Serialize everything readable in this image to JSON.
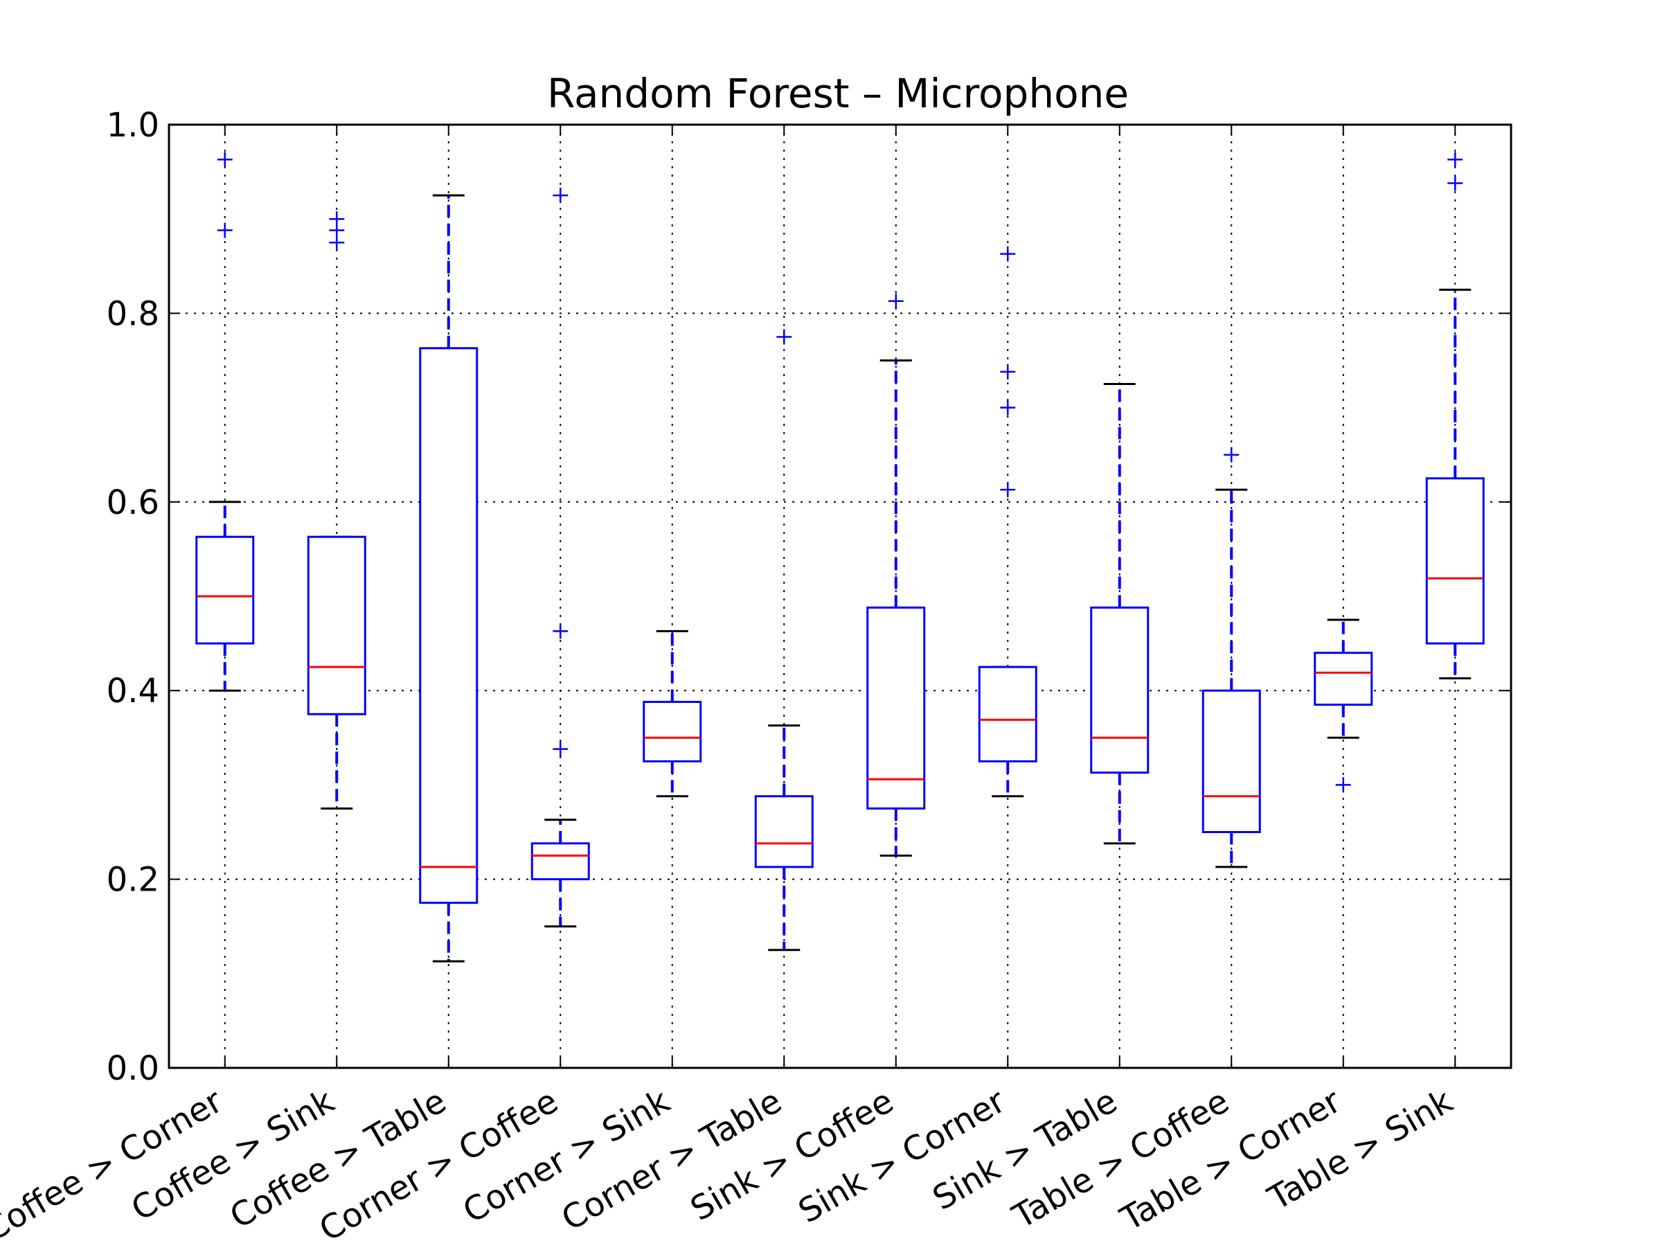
{
  "chart_data": {
    "type": "box",
    "title": "Random Forest – Microphone",
    "xlabel": "",
    "ylabel": "",
    "ylim": [
      0.0,
      1.0
    ],
    "yticks": [
      "0.0",
      "0.2",
      "0.4",
      "0.6",
      "0.8",
      "1.0"
    ],
    "grid": true,
    "categories": [
      "Coffee > Corner",
      "Coffee > Sink",
      "Coffee > Table",
      "Corner > Coffee",
      "Corner > Sink",
      "Corner > Table",
      "Sink > Coffee",
      "Sink > Corner",
      "Sink > Table",
      "Table > Coffee",
      "Table > Corner",
      "Table > Sink"
    ],
    "boxes": [
      {
        "whisker_low": 0.4,
        "q1": 0.45,
        "median": 0.5,
        "q3": 0.563,
        "whisker_high": 0.6,
        "outliers": [
          0.963,
          0.888
        ]
      },
      {
        "whisker_low": 0.275,
        "q1": 0.375,
        "median": 0.425,
        "q3": 0.563,
        "whisker_high": 0.563,
        "outliers": [
          0.9,
          0.888,
          0.875
        ]
      },
      {
        "whisker_low": 0.113,
        "q1": 0.175,
        "median": 0.213,
        "q3": 0.763,
        "whisker_high": 0.925,
        "outliers": []
      },
      {
        "whisker_low": 0.15,
        "q1": 0.2,
        "median": 0.225,
        "q3": 0.238,
        "whisker_high": 0.263,
        "outliers": [
          0.925,
          0.463,
          0.338
        ]
      },
      {
        "whisker_low": 0.288,
        "q1": 0.325,
        "median": 0.35,
        "q3": 0.388,
        "whisker_high": 0.463,
        "outliers": []
      },
      {
        "whisker_low": 0.125,
        "q1": 0.213,
        "median": 0.238,
        "q3": 0.288,
        "whisker_high": 0.363,
        "outliers": [
          0.775
        ]
      },
      {
        "whisker_low": 0.225,
        "q1": 0.275,
        "median": 0.306,
        "q3": 0.488,
        "whisker_high": 0.75,
        "outliers": [
          0.813
        ]
      },
      {
        "whisker_low": 0.288,
        "q1": 0.325,
        "median": 0.369,
        "q3": 0.425,
        "whisker_high": 0.425,
        "outliers": [
          0.863,
          0.738,
          0.7,
          0.613
        ]
      },
      {
        "whisker_low": 0.238,
        "q1": 0.313,
        "median": 0.35,
        "q3": 0.488,
        "whisker_high": 0.725,
        "outliers": []
      },
      {
        "whisker_low": 0.213,
        "q1": 0.25,
        "median": 0.288,
        "q3": 0.4,
        "whisker_high": 0.613,
        "outliers": [
          0.65
        ]
      },
      {
        "whisker_low": 0.35,
        "q1": 0.385,
        "median": 0.419,
        "q3": 0.44,
        "whisker_high": 0.475,
        "outliers": [
          0.3
        ]
      },
      {
        "whisker_low": 0.413,
        "q1": 0.45,
        "median": 0.519,
        "q3": 0.625,
        "whisker_high": 0.825,
        "outliers": [
          0.963,
          0.938
        ]
      }
    ],
    "colors": {
      "box": "#0000ff",
      "median": "#ff0000",
      "whisker": "#0000ff",
      "cap": "#000000",
      "outlier": "#0000ff",
      "grid": "#000000",
      "axes": "#000000"
    }
  }
}
